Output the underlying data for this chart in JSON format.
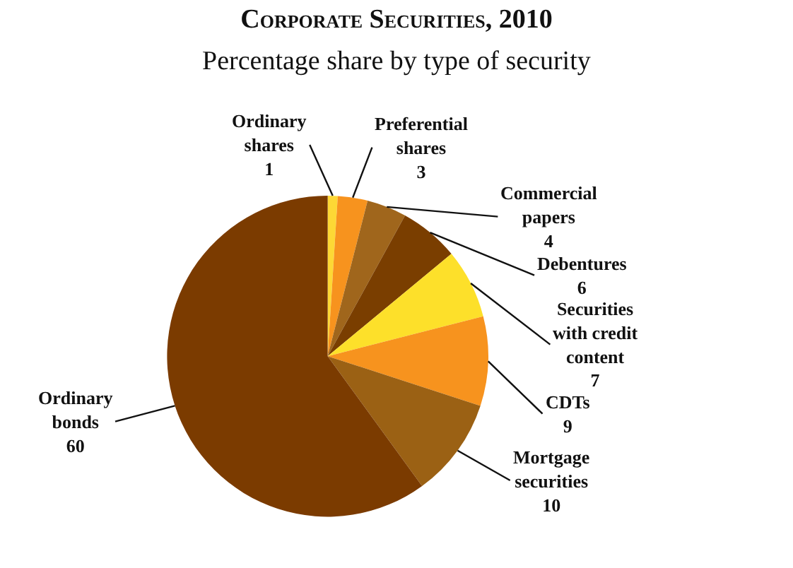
{
  "chart_data": {
    "type": "pie",
    "title": "Corporate Securities, 2010",
    "subtitle": "Percentage share by type of security",
    "categories": [
      "Ordinary shares",
      "Preferential shares",
      "Commercial papers",
      "Debentures",
      "Securities with credit content",
      "CDTs",
      "Mortgage securities",
      "Ordinary bonds"
    ],
    "values": [
      1,
      3,
      4,
      6,
      7,
      9,
      10,
      60
    ],
    "colors": [
      "#fdd835",
      "#f7931e",
      "#a0661c",
      "#7a3e00",
      "#fde02a",
      "#f7931e",
      "#9b6114",
      "#7b3b00"
    ],
    "data_labels": true,
    "legend": false
  }
}
